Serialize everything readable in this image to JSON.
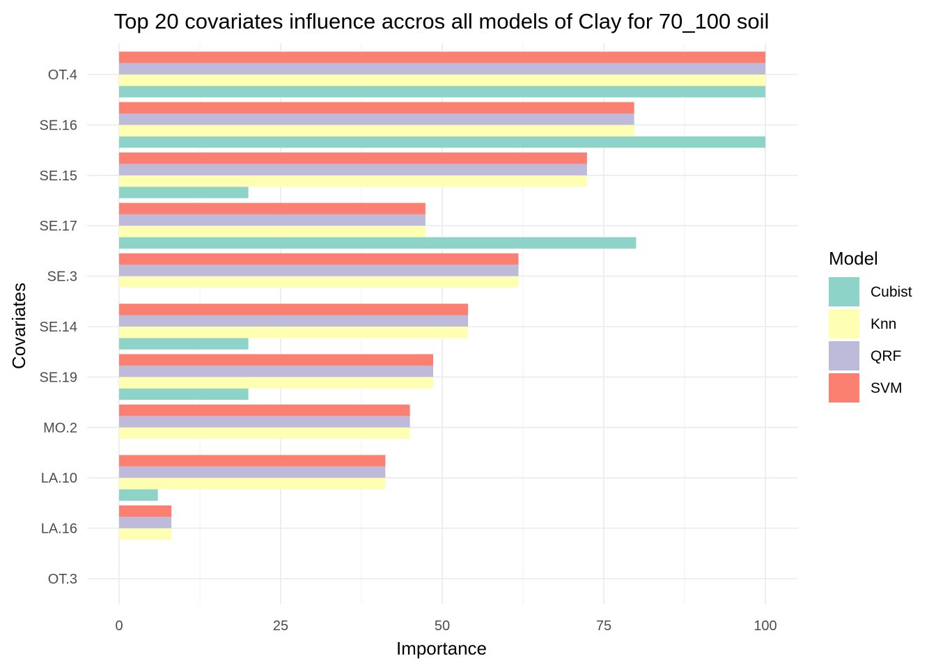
{
  "chart_data": {
    "type": "bar",
    "orientation": "horizontal",
    "title": "Top 20 covariates influence accros all models of Clay for 70_100 soil",
    "xlabel": "Importance",
    "ylabel": "Covariates",
    "xlim": [
      0,
      100
    ],
    "x_ticks": [
      "0",
      "25",
      "50",
      "75",
      "100"
    ],
    "x_tick_values": [
      0,
      25,
      50,
      75,
      100
    ],
    "grid": true,
    "legend": {
      "title": "Model",
      "position": "right"
    },
    "categories": [
      "OT.4",
      "SE.16",
      "SE.15",
      "SE.17",
      "SE.3",
      "SE.14",
      "SE.19",
      "MO.2",
      "LA.10",
      "LA.16",
      "OT.3"
    ],
    "series": [
      {
        "name": "Cubist",
        "color": "#8DD3C7",
        "values": [
          100,
          100,
          20,
          80,
          0,
          20,
          20,
          0,
          6,
          0,
          0
        ]
      },
      {
        "name": "Knn",
        "color": "#FFFFB3",
        "values": [
          100,
          79.7,
          72.4,
          47.4,
          61.8,
          54,
          48.6,
          45,
          41.2,
          8.1,
          0
        ]
      },
      {
        "name": "QRF",
        "color": "#BEBADA",
        "values": [
          100,
          79.7,
          72.4,
          47.4,
          61.8,
          54,
          48.6,
          45,
          41.2,
          8.1,
          0
        ]
      },
      {
        "name": "SVM",
        "color": "#FB8072",
        "values": [
          100,
          79.7,
          72.4,
          47.4,
          61.8,
          54,
          48.6,
          45,
          41.2,
          8.1,
          0
        ]
      }
    ]
  }
}
